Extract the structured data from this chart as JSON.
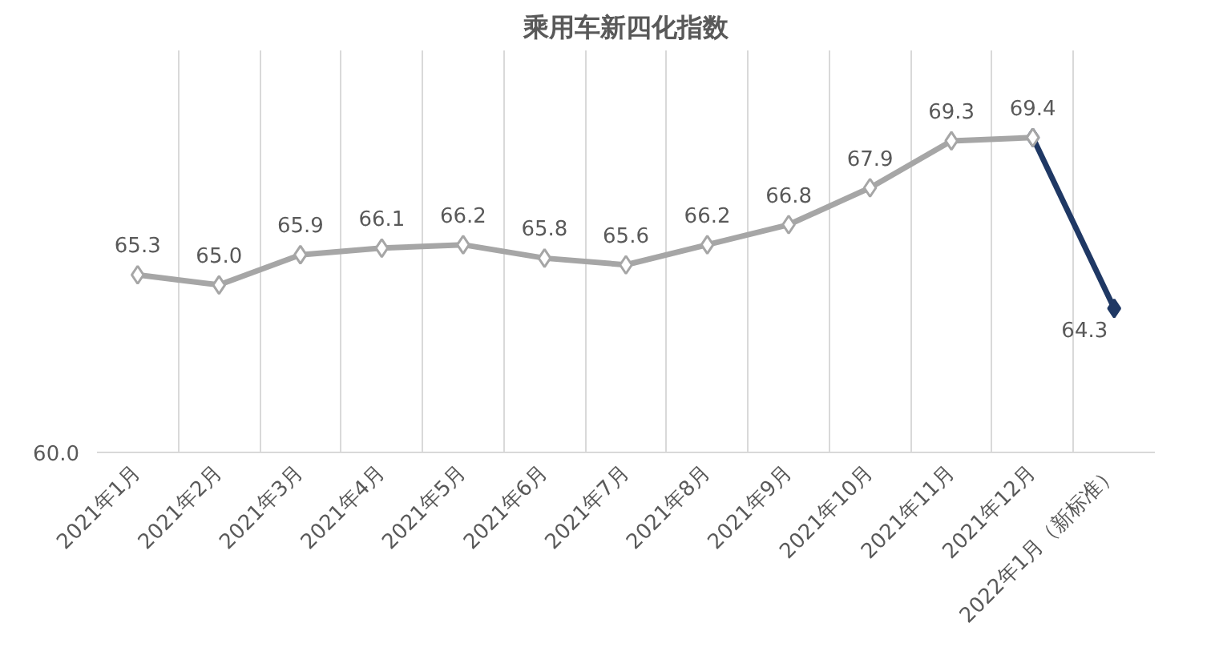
{
  "chart_data": {
    "type": "line",
    "title": "乘用车新四化指数",
    "categories": [
      "2021年1月",
      "2021年2月",
      "2021年3月",
      "2021年4月",
      "2021年5月",
      "2021年6月",
      "2021年7月",
      "2021年8月",
      "2021年9月",
      "2021年10月",
      "2021年11月",
      "2021年12月",
      "2022年1月（新标准）"
    ],
    "series": [
      {
        "color": "#1f3864",
        "marker": "diamond",
        "values": [
          null,
          null,
          null,
          null,
          null,
          null,
          null,
          null,
          null,
          null,
          null,
          69.4,
          64.3
        ],
        "value_labels": [
          null,
          null,
          null,
          null,
          null,
          null,
          null,
          null,
          null,
          null,
          null,
          null,
          "64.3"
        ]
      },
      {
        "color": "#a6a6a6",
        "marker": "diamond",
        "values": [
          65.3,
          65.0,
          65.9,
          66.1,
          66.2,
          65.8,
          65.6,
          66.2,
          66.8,
          67.9,
          69.3,
          69.4,
          null
        ],
        "value_labels": [
          "65.3",
          "65.0",
          "65.9",
          "66.1",
          "66.2",
          "65.8",
          "65.6",
          "66.2",
          "66.8",
          "67.9",
          "69.3",
          "69.4",
          null
        ]
      }
    ],
    "ylim": [
      60,
      72
    ],
    "annotations": [
      "60.0"
    ],
    "grid": "x",
    "line_style": "solid"
  }
}
